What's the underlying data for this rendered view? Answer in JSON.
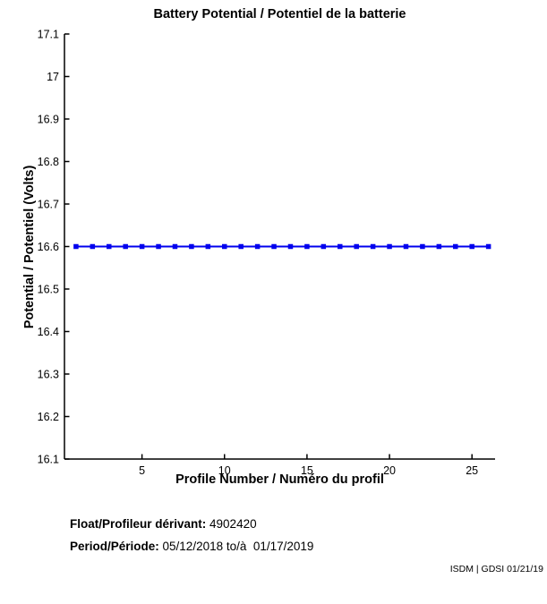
{
  "chart_data": {
    "type": "line",
    "title": "Battery Potential / Potentiel de la batterie",
    "xlabel": "Profile Number / Numéro du profil",
    "ylabel": "Potential / Potentiel (Volts)",
    "x": [
      1,
      2,
      3,
      4,
      5,
      6,
      7,
      8,
      9,
      10,
      11,
      12,
      13,
      14,
      15,
      16,
      17,
      18,
      19,
      20,
      21,
      22,
      23,
      24,
      25,
      26
    ],
    "y": [
      16.6,
      16.6,
      16.6,
      16.6,
      16.6,
      16.6,
      16.6,
      16.6,
      16.6,
      16.6,
      16.6,
      16.6,
      16.6,
      16.6,
      16.6,
      16.6,
      16.6,
      16.6,
      16.6,
      16.6,
      16.6,
      16.6,
      16.6,
      16.6,
      16.6,
      16.6
    ],
    "xlim": [
      0.3,
      26.4
    ],
    "ylim": [
      16.1,
      17.1
    ],
    "xticks": [
      5,
      10,
      15,
      20,
      25
    ],
    "xtick_labels": [
      "5",
      "10",
      "15",
      "20",
      "25"
    ],
    "yticks": [
      16.1,
      16.2,
      16.3,
      16.4,
      16.5,
      16.6,
      16.7,
      16.8,
      16.9,
      17,
      17.1
    ],
    "ytick_labels": [
      "16.1",
      "16.2",
      "16.3",
      "16.4",
      "16.5",
      "16.6",
      "16.7",
      "16.8",
      "16.9",
      "17",
      "17.1"
    ],
    "line_color": "#0000ee",
    "axis_color": "#000000",
    "marker": "square",
    "grid": false,
    "legend": "none"
  },
  "footer": {
    "float_label": "Float/Profileur dérivant:",
    "float_value": " 4902420",
    "period_label": "Period/Période:",
    "period_value": " 05/12/2018 to/à  01/17/2019"
  },
  "credit": "ISDM | GDSI 01/21/19"
}
